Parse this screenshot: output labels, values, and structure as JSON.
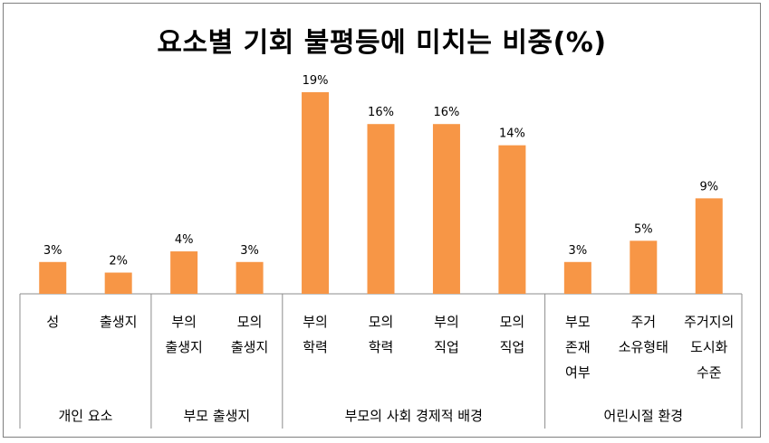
{
  "chart_data": {
    "type": "bar",
    "title": "요소별 기회 불평등에 미치는 비중(%)",
    "categories": [
      [
        "성"
      ],
      [
        "출생지"
      ],
      [
        "부의",
        "출생지"
      ],
      [
        "모의",
        "출생지"
      ],
      [
        "부의",
        "학력"
      ],
      [
        "모의",
        "학력"
      ],
      [
        "부의",
        "직업"
      ],
      [
        "모의",
        "직업"
      ],
      [
        "부모",
        "존재",
        "여부"
      ],
      [
        "주거",
        "소유형태"
      ],
      [
        "주거지의",
        "도시화",
        "수준"
      ]
    ],
    "values": [
      3,
      2,
      4,
      3,
      19,
      16,
      16,
      14,
      3,
      5,
      9
    ],
    "value_labels": [
      "3%",
      "2%",
      "4%",
      "3%",
      "19%",
      "16%",
      "16%",
      "14%",
      "3%",
      "5%",
      "9%"
    ],
    "groups": [
      {
        "label": "개인 요소",
        "count": 2
      },
      {
        "label": "부모 출생지",
        "count": 2
      },
      {
        "label": "부모의 사회 경제적 배경",
        "count": 4
      },
      {
        "label": "어린시절 환경",
        "count": 3
      }
    ],
    "bar_color": "#f79646",
    "ylim": [
      0,
      19
    ],
    "grid": false,
    "legend": "none"
  }
}
